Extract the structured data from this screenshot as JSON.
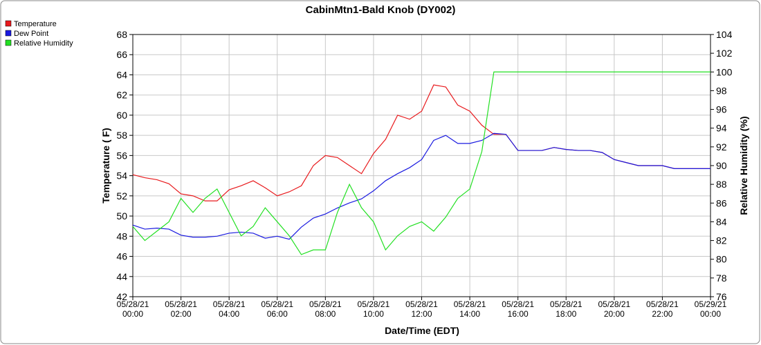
{
  "chart_data": {
    "type": "line",
    "title": "CabinMtn1-Bald Knob (DY002)",
    "x_label": "Date/Time (EDT)",
    "y_label": "Temperature ( F)",
    "y2_label": "Relative Humidity (%)",
    "legend": "top-left",
    "grid": true,
    "x": [
      0,
      0.5,
      1,
      1.5,
      2,
      2.5,
      3,
      3.5,
      4,
      4.5,
      5,
      5.5,
      6,
      6.5,
      7,
      7.5,
      8,
      8.5,
      9,
      9.5,
      10,
      10.5,
      11,
      11.5,
      12,
      12.5,
      13,
      13.5,
      14,
      14.5,
      15,
      15.5,
      16,
      16.5,
      17,
      17.5,
      18,
      18.5,
      19,
      19.5,
      20,
      20.5,
      21,
      21.5,
      22,
      22.5,
      23,
      23.5,
      24
    ],
    "xlim": [
      0,
      24
    ],
    "xticks": [
      {
        "value": 0,
        "label": "05/28/21 00:00"
      },
      {
        "value": 2,
        "label": "05/28/21 02:00"
      },
      {
        "value": 4,
        "label": "05/28/21 04:00"
      },
      {
        "value": 6,
        "label": "05/28/21 06:00"
      },
      {
        "value": 8,
        "label": "05/28/21 08:00"
      },
      {
        "value": 10,
        "label": "05/28/21 10:00"
      },
      {
        "value": 12,
        "label": "05/28/21 12:00"
      },
      {
        "value": 14,
        "label": "05/28/21 14:00"
      },
      {
        "value": 16,
        "label": "05/28/21 16:00"
      },
      {
        "value": 18,
        "label": "05/28/21 18:00"
      },
      {
        "value": 20,
        "label": "05/28/21 20:00"
      },
      {
        "value": 22,
        "label": "05/28/21 22:00"
      },
      {
        "value": 24,
        "label": "05/29/21 00:00"
      }
    ],
    "ylim": [
      42,
      68
    ],
    "yticks": [
      42,
      44,
      46,
      48,
      50,
      52,
      54,
      56,
      58,
      60,
      62,
      64,
      66,
      68
    ],
    "y2lim": [
      76,
      104
    ],
    "y2ticks": [
      76,
      78,
      80,
      82,
      84,
      86,
      88,
      90,
      92,
      94,
      96,
      98,
      100,
      102,
      104
    ],
    "series": [
      {
        "name": "Temperature",
        "color": "#e8191c",
        "values": [
          54.1,
          53.8,
          53.6,
          53.2,
          52.2,
          52.0,
          51.5,
          51.5,
          52.6,
          53.0,
          53.5,
          52.8,
          52.0,
          52.4,
          53.0,
          55.0,
          56.0,
          55.8,
          55.0,
          54.2,
          56.2,
          57.6,
          60.0,
          59.6,
          60.4,
          63.0,
          62.8,
          61.0,
          60.4,
          59.0,
          58.1,
          58.1,
          56.5,
          56.5,
          56.5,
          56.8,
          56.6,
          56.5,
          56.5,
          56.3,
          55.6,
          55.3,
          55.0,
          55.0,
          55.0,
          54.7,
          54.7,
          54.7,
          54.7
        ]
      },
      {
        "name": "Dew Point",
        "color": "#1919e0",
        "values": [
          49.1,
          48.7,
          48.8,
          48.7,
          48.1,
          47.9,
          47.9,
          48.0,
          48.3,
          48.4,
          48.3,
          47.8,
          48.0,
          47.7,
          48.9,
          49.8,
          50.2,
          50.8,
          51.3,
          51.7,
          52.5,
          53.5,
          54.2,
          54.8,
          55.6,
          57.5,
          58.0,
          57.2,
          57.2,
          57.5,
          58.2,
          58.1,
          56.5,
          56.5,
          56.5,
          56.8,
          56.6,
          56.5,
          56.5,
          56.3,
          55.6,
          55.3,
          55.0,
          55.0,
          55.0,
          54.7,
          54.7,
          54.7,
          54.7
        ]
      },
      {
        "name": "Relative Humidity",
        "color": "#22e022",
        "axis": "y2",
        "values": [
          83.5,
          82.0,
          83,
          84,
          86.5,
          85,
          86.5,
          87.5,
          85,
          82.5,
          83.5,
          85.5,
          84,
          82.5,
          80.5,
          81,
          81,
          85,
          88,
          85.5,
          84,
          81,
          82.5,
          83.5,
          84,
          83,
          84.5,
          86.5,
          87.5,
          91.5,
          100,
          100,
          100,
          100,
          100,
          100,
          100,
          100,
          100,
          100,
          100,
          100,
          100,
          100,
          100,
          100,
          100,
          100,
          100
        ]
      }
    ]
  }
}
